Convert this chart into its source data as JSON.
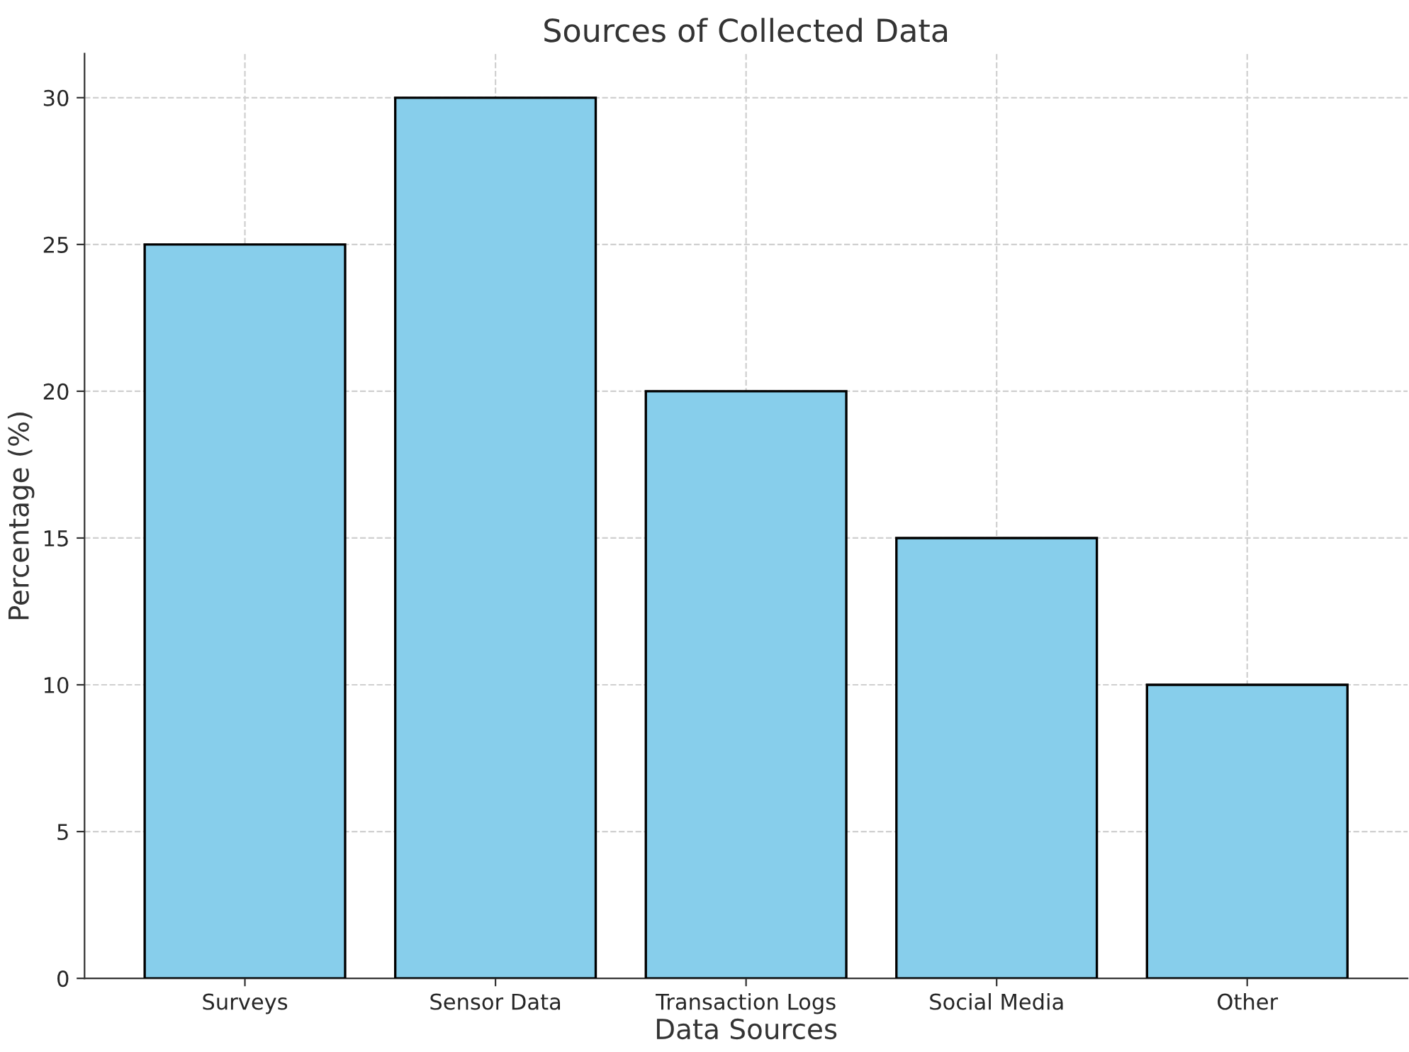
{
  "chart_data": {
    "type": "bar",
    "title": "Sources of Collected Data",
    "xlabel": "Data Sources",
    "ylabel": "Percentage (%)",
    "categories": [
      "Surveys",
      "Sensor Data",
      "Transaction Logs",
      "Social Media",
      "Other"
    ],
    "values": [
      25,
      30,
      20,
      15,
      10
    ],
    "color": "#87ceeb",
    "ylim": [
      0,
      31.5
    ],
    "yticks": [
      0,
      5,
      10,
      15,
      20,
      25,
      30
    ],
    "grid": true
  }
}
